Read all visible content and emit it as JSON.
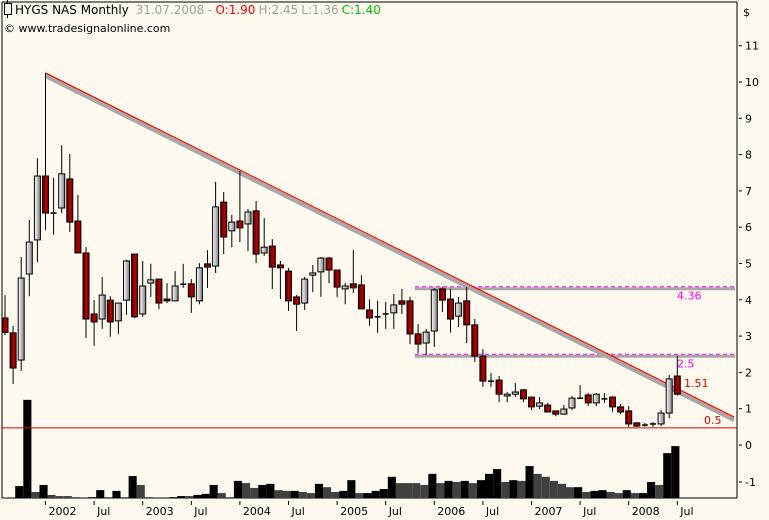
{
  "header": {
    "symbol": "HYGS NAS Monthly",
    "date": "31.07.2008 -",
    "open": "O:1.90",
    "high": "H:2.45",
    "low": "L:1.36",
    "close": "C:1.40",
    "copyright": "© www.tradesignalonline.com"
  },
  "colors": {
    "background": "#fdf9ee",
    "up": "#e8e8e8",
    "down": "#a00000",
    "trendline": "#ff0000",
    "levels": "#ff00ff",
    "volume_black": "#000000",
    "volume_gray": "#404040"
  },
  "chart_data": {
    "type": "candlestick",
    "currency_label": "$",
    "ylim": [
      0.5,
      11
    ],
    "y_ticks": [
      "1",
      "2",
      "3",
      "4",
      "5",
      "6",
      "7",
      "8",
      "9",
      "10",
      "11"
    ],
    "x_ticks": [
      {
        "label": "2002",
        "date": "2002-01"
      },
      {
        "label": "Jul",
        "date": "2002-07"
      },
      {
        "label": "2003",
        "date": "2003-01"
      },
      {
        "label": "Jul",
        "date": "2003-07"
      },
      {
        "label": "2004",
        "date": "2004-01"
      },
      {
        "label": "Jul",
        "date": "2004-07"
      },
      {
        "label": "2005",
        "date": "2005-01"
      },
      {
        "label": "Jul",
        "date": "2005-07"
      },
      {
        "label": "2006",
        "date": "2006-01"
      },
      {
        "label": "Jul",
        "date": "2006-07"
      },
      {
        "label": "2007",
        "date": "2007-01"
      },
      {
        "label": "Jul",
        "date": "2007-07"
      },
      {
        "label": "2008",
        "date": "2008-01"
      },
      {
        "label": "Jul",
        "date": "2008-07"
      }
    ],
    "start_month": "2001-08",
    "ohlc": [
      [
        3.5,
        4.13,
        3.03,
        3.1
      ],
      [
        3.09,
        3.28,
        1.68,
        2.12
      ],
      [
        2.34,
        5.18,
        2.04,
        4.6
      ],
      [
        4.71,
        6.2,
        4.1,
        5.59
      ],
      [
        5.65,
        7.9,
        5.04,
        7.41
      ],
      [
        7.41,
        10.25,
        5.92,
        6.39
      ],
      [
        6.39,
        7.36,
        5.79,
        6.39
      ],
      [
        6.53,
        8.26,
        6.39,
        7.47
      ],
      [
        7.33,
        8.02,
        5.87,
        6.14
      ],
      [
        6.17,
        6.89,
        5.29,
        5.29
      ],
      [
        5.29,
        5.45,
        2.95,
        3.47
      ],
      [
        3.61,
        3.99,
        2.73,
        3.39
      ],
      [
        3.47,
        4.63,
        3.2,
        4.13
      ],
      [
        3.99,
        4.1,
        2.98,
        3.39
      ],
      [
        3.42,
        3.91,
        3.06,
        3.91
      ],
      [
        3.99,
        5.1,
        3.58,
        5.07
      ],
      [
        5.26,
        5.26,
        3.5,
        3.53
      ],
      [
        3.61,
        5.07,
        3.53,
        4.38
      ],
      [
        4.46,
        4.99,
        4.08,
        4.55
      ],
      [
        4.57,
        4.57,
        3.74,
        3.91
      ],
      [
        4.02,
        4.46,
        3.91,
        3.97
      ],
      [
        3.97,
        4.79,
        3.97,
        4.38
      ],
      [
        4.43,
        4.99,
        4.33,
        4.43
      ],
      [
        4.44,
        4.57,
        3.64,
        4.08
      ],
      [
        3.97,
        5.01,
        3.88,
        4.88
      ],
      [
        4.99,
        5.37,
        4.33,
        4.9
      ],
      [
        4.93,
        7.25,
        4.74,
        6.56
      ],
      [
        6.69,
        6.97,
        5.26,
        5.73
      ],
      [
        5.9,
        6.34,
        5.45,
        6.14
      ],
      [
        6.17,
        7.55,
        5.59,
        5.98
      ],
      [
        6.09,
        6.5,
        5.34,
        6.42
      ],
      [
        6.45,
        6.72,
        5.01,
        5.26
      ],
      [
        5.29,
        6.25,
        5.21,
        5.45
      ],
      [
        5.48,
        5.67,
        4.3,
        4.9
      ],
      [
        4.96,
        5.07,
        4.02,
        4.88
      ],
      [
        4.79,
        4.88,
        3.69,
        3.97
      ],
      [
        4.08,
        4.13,
        3.14,
        3.88
      ],
      [
        3.91,
        4.63,
        3.72,
        4.57
      ],
      [
        4.68,
        4.96,
        4.21,
        4.74
      ],
      [
        4.77,
        5.18,
        4.08,
        5.15
      ],
      [
        5.15,
        5.18,
        4.46,
        4.82
      ],
      [
        4.82,
        4.82,
        4.08,
        4.35
      ],
      [
        4.3,
        4.46,
        3.88,
        4.38
      ],
      [
        4.44,
        5.37,
        4.19,
        4.33
      ],
      [
        4.41,
        4.68,
        3.75,
        3.75
      ],
      [
        3.72,
        4.02,
        3.28,
        3.5
      ],
      [
        3.53,
        3.97,
        3.09,
        3.53
      ],
      [
        3.61,
        3.94,
        3.2,
        3.61
      ],
      [
        3.64,
        4.16,
        3.2,
        3.86
      ],
      [
        3.97,
        4.3,
        3.61,
        3.88
      ],
      [
        3.97,
        4.08,
        2.78,
        3.06
      ],
      [
        3.06,
        3.33,
        2.53,
        2.78
      ],
      [
        2.81,
        3.2,
        2.48,
        3.11
      ],
      [
        3.14,
        4.32,
        2.7,
        4.27
      ],
      [
        4.3,
        4.35,
        3.66,
        3.99
      ],
      [
        4.02,
        4.3,
        3.09,
        3.47
      ],
      [
        3.55,
        4.08,
        3.25,
        3.91
      ],
      [
        3.97,
        4.35,
        2.81,
        3.31
      ],
      [
        3.31,
        3.47,
        2.29,
        2.45
      ],
      [
        2.45,
        2.64,
        1.6,
        1.76
      ],
      [
        1.76,
        1.98,
        1.6,
        1.76
      ],
      [
        1.79,
        1.9,
        1.18,
        1.4
      ],
      [
        1.35,
        1.46,
        1.18,
        1.4
      ],
      [
        1.4,
        1.71,
        1.32,
        1.46
      ],
      [
        1.52,
        1.54,
        1.18,
        1.27
      ],
      [
        1.32,
        1.32,
        0.96,
        1.05
      ],
      [
        1.07,
        1.32,
        0.99,
        1.16
      ],
      [
        1.1,
        1.16,
        0.91,
        0.91
      ],
      [
        0.94,
        0.94,
        0.79,
        0.85
      ],
      [
        0.85,
        1.1,
        0.83,
        0.99
      ],
      [
        1.02,
        1.35,
        0.96,
        1.29
      ],
      [
        1.29,
        1.65,
        1.27,
        1.29
      ],
      [
        1.38,
        1.43,
        1.07,
        1.16
      ],
      [
        1.16,
        1.43,
        1.07,
        1.4
      ],
      [
        1.27,
        1.43,
        1.16,
        1.27
      ],
      [
        1.32,
        1.35,
        0.91,
        1.05
      ],
      [
        1.05,
        1.13,
        0.85,
        0.91
      ],
      [
        0.94,
        1.07,
        0.5,
        0.58
      ],
      [
        0.61,
        0.63,
        0.5,
        0.52
      ],
      [
        0.55,
        0.61,
        0.5,
        0.55
      ],
      [
        0.58,
        0.63,
        0.5,
        0.58
      ],
      [
        0.58,
        0.96,
        0.52,
        0.88
      ],
      [
        0.88,
        1.93,
        0.74,
        1.82
      ],
      [
        1.9,
        2.45,
        1.36,
        1.4
      ]
    ],
    "volume_panel": {
      "y_ticks": [
        "0",
        "-1"
      ],
      "ylim": [
        -1.43,
        0.5
      ],
      "values": [
        null,
        null,
        -1.11,
        1.22,
        -1.27,
        -1.08,
        -1.35,
        -1.38,
        -1.38,
        -1.41,
        -1.43,
        -1.41,
        -1.22,
        -1.41,
        -1.24,
        -1.41,
        -0.84,
        -1.08,
        -1.41,
        -1.43,
        -1.43,
        -1.41,
        -1.38,
        -1.38,
        -1.35,
        -1.32,
        -1.08,
        -1.3,
        -1.41,
        -0.97,
        -1.03,
        -1.16,
        -1.08,
        -1.05,
        -1.22,
        -1.24,
        -1.24,
        -1.27,
        -1.3,
        -1.05,
        -1.14,
        -1.27,
        -1.24,
        -0.95,
        -1.3,
        -1.3,
        -1.24,
        -1.19,
        -0.86,
        -1.03,
        -1.03,
        -1.03,
        -1.08,
        -0.78,
        -1.03,
        -0.97,
        -1.0,
        -0.97,
        -1.03,
        -0.95,
        -0.78,
        -0.65,
        -1.0,
        -0.95,
        -0.97,
        -0.57,
        -0.78,
        -0.86,
        -0.97,
        -1.05,
        -1.14,
        -1.14,
        -1.27,
        -1.24,
        -1.22,
        -1.27,
        -1.3,
        -1.22,
        -1.3,
        -1.3,
        -1.0,
        -1.08,
        -0.22,
        -0.03
      ],
      "bar_colors": [
        "",
        "",
        "k",
        "k",
        "g",
        "k",
        "g",
        "g",
        "g",
        "g",
        "g",
        "k",
        "k",
        "g",
        "k",
        "g",
        "k",
        "g",
        "g",
        "g",
        "g",
        "k",
        "k",
        "g",
        "k",
        "k",
        "k",
        "g",
        "g",
        "k",
        "g",
        "g",
        "k",
        "k",
        "g",
        "g",
        "k",
        "g",
        "g",
        "k",
        "g",
        "g",
        "k",
        "k",
        "g",
        "k",
        "k",
        "k",
        "k",
        "g",
        "g",
        "g",
        "g",
        "k",
        "g",
        "k",
        "g",
        "k",
        "g",
        "k",
        "k",
        "k",
        "g",
        "k",
        "g",
        "k",
        "g",
        "g",
        "g",
        "g",
        "g",
        "k",
        "g",
        "k",
        "k",
        "g",
        "g",
        "k",
        "g",
        "k",
        "k",
        "g",
        "k",
        "k"
      ]
    },
    "trendline": {
      "from": {
        "date": "2002-01",
        "value": 10.25
      },
      "to": {
        "date": "2009-02",
        "value": 0.77
      },
      "label": "1.51"
    },
    "levels": [
      {
        "value": 4.36,
        "label": "4.36",
        "from_date": "2005-10"
      },
      {
        "value": 2.5,
        "label": "2.5",
        "from_date": "2005-10"
      }
    ],
    "support_line": {
      "value": 0.5,
      "label": "0.5"
    }
  }
}
